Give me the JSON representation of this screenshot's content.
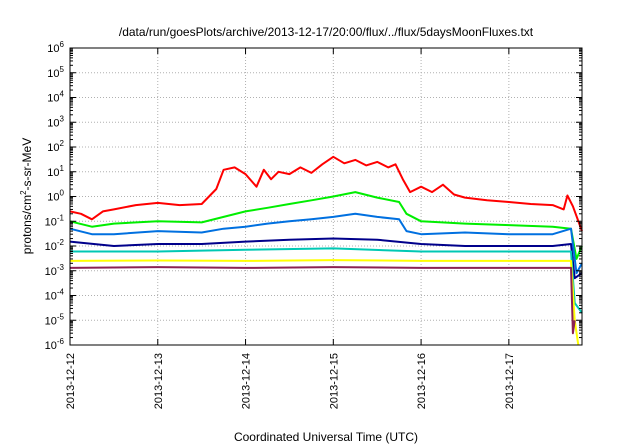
{
  "chart_data": {
    "type": "line",
    "title": "/data/run/goesPlots/archive/2013-12-17/20:00/flux/../flux/5daysMoonFluxes.txt",
    "xlabel": "Coordinated Universal Time (UTC)",
    "ylabel_prefix": "protons/cm",
    "ylabel_sup": "2",
    "ylabel_suffix": "-s-sr-MeV",
    "y_scale": "log",
    "ylim": [
      1e-06,
      1000000.0
    ],
    "xlim": [
      "2013-12-12",
      "2013-12-17 20:00"
    ],
    "grid": true,
    "x_ticks": [
      "2013-12-12",
      "2013-12-13",
      "2013-12-14",
      "2013-12-15",
      "2013-12-16",
      "2013-12-17"
    ],
    "y_ticks": [
      {
        "base": "10",
        "exp": "-6"
      },
      {
        "base": "10",
        "exp": "-5"
      },
      {
        "base": "10",
        "exp": "-4"
      },
      {
        "base": "10",
        "exp": "-3"
      },
      {
        "base": "10",
        "exp": "-2"
      },
      {
        "base": "10",
        "exp": "-1"
      },
      {
        "base": "10",
        "exp": "0"
      },
      {
        "base": "10",
        "exp": "1"
      },
      {
        "base": "10",
        "exp": "2"
      },
      {
        "base": "10",
        "exp": "3"
      },
      {
        "base": "10",
        "exp": "4"
      },
      {
        "base": "10",
        "exp": "5"
      },
      {
        "base": "10",
        "exp": "6"
      }
    ],
    "series": [
      {
        "color": "#ff0000",
        "points": [
          [
            "2013-12-12 00:00",
            0.25
          ],
          [
            "2013-12-12 03:00",
            0.2
          ],
          [
            "2013-12-12 06:00",
            0.12
          ],
          [
            "2013-12-12 09:00",
            0.25
          ],
          [
            "2013-12-12 12:00",
            0.3
          ],
          [
            "2013-12-12 18:00",
            0.45
          ],
          [
            "2013-12-13 00:00",
            0.55
          ],
          [
            "2013-12-13 06:00",
            0.45
          ],
          [
            "2013-12-13 12:00",
            0.5
          ],
          [
            "2013-12-13 16:00",
            2.0
          ],
          [
            "2013-12-13 18:00",
            12
          ],
          [
            "2013-12-13 21:00",
            15
          ],
          [
            "2013-12-14 00:00",
            8
          ],
          [
            "2013-12-14 03:00",
            2.5
          ],
          [
            "2013-12-14 05:00",
            12
          ],
          [
            "2013-12-14 07:00",
            5
          ],
          [
            "2013-12-14 09:00",
            10
          ],
          [
            "2013-12-14 12:00",
            8
          ],
          [
            "2013-12-14 15:00",
            15
          ],
          [
            "2013-12-14 18:00",
            9
          ],
          [
            "2013-12-14 21:00",
            20
          ],
          [
            "2013-12-15 00:00",
            40
          ],
          [
            "2013-12-15 03:00",
            22
          ],
          [
            "2013-12-15 06:00",
            30
          ],
          [
            "2013-12-15 09:00",
            18
          ],
          [
            "2013-12-15 12:00",
            25
          ],
          [
            "2013-12-15 15:00",
            15
          ],
          [
            "2013-12-15 17:00",
            20
          ],
          [
            "2013-12-15 19:00",
            5
          ],
          [
            "2013-12-15 21:00",
            1.5
          ],
          [
            "2013-12-16 00:00",
            2.5
          ],
          [
            "2013-12-16 03:00",
            1.5
          ],
          [
            "2013-12-16 06:00",
            3.0
          ],
          [
            "2013-12-16 09:00",
            1.2
          ],
          [
            "2013-12-16 12:00",
            0.9
          ],
          [
            "2013-12-16 18:00",
            0.7
          ],
          [
            "2013-12-17 00:00",
            0.6
          ],
          [
            "2013-12-17 06:00",
            0.5
          ],
          [
            "2013-12-17 12:00",
            0.45
          ],
          [
            "2013-12-17 15:00",
            0.3
          ],
          [
            "2013-12-17 16:00",
            1.1
          ],
          [
            "2013-12-17 17:30",
            0.4
          ],
          [
            "2013-12-17 20:00",
            0.04
          ]
        ]
      },
      {
        "color": "#00ee00",
        "points": [
          [
            "2013-12-12 00:00",
            0.1
          ],
          [
            "2013-12-12 06:00",
            0.06
          ],
          [
            "2013-12-12 12:00",
            0.08
          ],
          [
            "2013-12-13 00:00",
            0.1
          ],
          [
            "2013-12-13 12:00",
            0.09
          ],
          [
            "2013-12-13 18:00",
            0.15
          ],
          [
            "2013-12-14 00:00",
            0.25
          ],
          [
            "2013-12-14 06:00",
            0.35
          ],
          [
            "2013-12-14 12:00",
            0.5
          ],
          [
            "2013-12-14 18:00",
            0.7
          ],
          [
            "2013-12-15 00:00",
            1.0
          ],
          [
            "2013-12-15 06:00",
            1.5
          ],
          [
            "2013-12-15 12:00",
            0.9
          ],
          [
            "2013-12-15 18:00",
            0.6
          ],
          [
            "2013-12-15 20:00",
            0.2
          ],
          [
            "2013-12-16 00:00",
            0.1
          ],
          [
            "2013-12-16 12:00",
            0.08
          ],
          [
            "2013-12-17 00:00",
            0.07
          ],
          [
            "2013-12-17 12:00",
            0.06
          ],
          [
            "2013-12-17 17:00",
            0.05
          ],
          [
            "2013-12-17 18:30",
            0.003
          ],
          [
            "2013-12-17 20:00",
            0.01
          ]
        ]
      },
      {
        "color": "#0070e0",
        "points": [
          [
            "2013-12-12 00:00",
            0.05
          ],
          [
            "2013-12-12 06:00",
            0.03
          ],
          [
            "2013-12-12 12:00",
            0.03
          ],
          [
            "2013-12-13 00:00",
            0.04
          ],
          [
            "2013-12-13 12:00",
            0.035
          ],
          [
            "2013-12-13 18:00",
            0.05
          ],
          [
            "2013-12-14 00:00",
            0.06
          ],
          [
            "2013-12-14 06:00",
            0.08
          ],
          [
            "2013-12-14 12:00",
            0.1
          ],
          [
            "2013-12-14 18:00",
            0.12
          ],
          [
            "2013-12-15 00:00",
            0.15
          ],
          [
            "2013-12-15 06:00",
            0.2
          ],
          [
            "2013-12-15 12:00",
            0.15
          ],
          [
            "2013-12-15 18:00",
            0.12
          ],
          [
            "2013-12-15 20:00",
            0.04
          ],
          [
            "2013-12-16 00:00",
            0.03
          ],
          [
            "2013-12-16 12:00",
            0.035
          ],
          [
            "2013-12-17 00:00",
            0.03
          ],
          [
            "2013-12-17 12:00",
            0.03
          ],
          [
            "2013-12-17 17:00",
            0.05
          ],
          [
            "2013-12-17 18:30",
            0.0008
          ],
          [
            "2013-12-17 20:00",
            0.002
          ]
        ]
      },
      {
        "color": "#00008b",
        "points": [
          [
            "2013-12-12 00:00",
            0.015
          ],
          [
            "2013-12-12 12:00",
            0.01
          ],
          [
            "2013-12-13 00:00",
            0.012
          ],
          [
            "2013-12-13 12:00",
            0.012
          ],
          [
            "2013-12-14 00:00",
            0.015
          ],
          [
            "2013-12-14 12:00",
            0.018
          ],
          [
            "2013-12-15 00:00",
            0.02
          ],
          [
            "2013-12-15 12:00",
            0.018
          ],
          [
            "2013-12-16 00:00",
            0.012
          ],
          [
            "2013-12-16 12:00",
            0.01
          ],
          [
            "2013-12-17 00:00",
            0.01
          ],
          [
            "2013-12-17 12:00",
            0.01
          ],
          [
            "2013-12-17 17:00",
            0.012
          ],
          [
            "2013-12-17 18:00",
            0.0005
          ],
          [
            "2013-12-17 20:00",
            0.0008
          ]
        ]
      },
      {
        "color": "#00c8b4",
        "points": [
          [
            "2013-12-12 00:00",
            0.006
          ],
          [
            "2013-12-13 00:00",
            0.006
          ],
          [
            "2013-12-14 00:00",
            0.007
          ],
          [
            "2013-12-15 00:00",
            0.008
          ],
          [
            "2013-12-16 00:00",
            0.006
          ],
          [
            "2013-12-17 00:00",
            0.006
          ],
          [
            "2013-12-17 17:00",
            0.006
          ],
          [
            "2013-12-17 18:00",
            5e-05
          ],
          [
            "2013-12-17 20:00",
            2e-05
          ]
        ]
      },
      {
        "color": "#ffff00",
        "points": [
          [
            "2013-12-12 00:00",
            0.0025
          ],
          [
            "2013-12-13 00:00",
            0.0026
          ],
          [
            "2013-12-14 00:00",
            0.0025
          ],
          [
            "2013-12-15 00:00",
            0.0027
          ],
          [
            "2013-12-16 00:00",
            0.0025
          ],
          [
            "2013-12-17 00:00",
            0.0025
          ],
          [
            "2013-12-17 17:00",
            0.0025
          ],
          [
            "2013-12-17 18:00",
            1e-05
          ],
          [
            "2013-12-17 19:00",
            1e-06
          ]
        ]
      },
      {
        "color": "#8b2252",
        "points": [
          [
            "2013-12-12 00:00",
            0.0013
          ],
          [
            "2013-12-13 00:00",
            0.0014
          ],
          [
            "2013-12-14 00:00",
            0.0013
          ],
          [
            "2013-12-15 00:00",
            0.0014
          ],
          [
            "2013-12-16 00:00",
            0.0013
          ],
          [
            "2013-12-17 00:00",
            0.0013
          ],
          [
            "2013-12-17 17:00",
            0.0013
          ],
          [
            "2013-12-17 17:30",
            3e-06
          ],
          [
            "2013-12-17 18:00",
            1e-05
          ]
        ]
      }
    ]
  }
}
